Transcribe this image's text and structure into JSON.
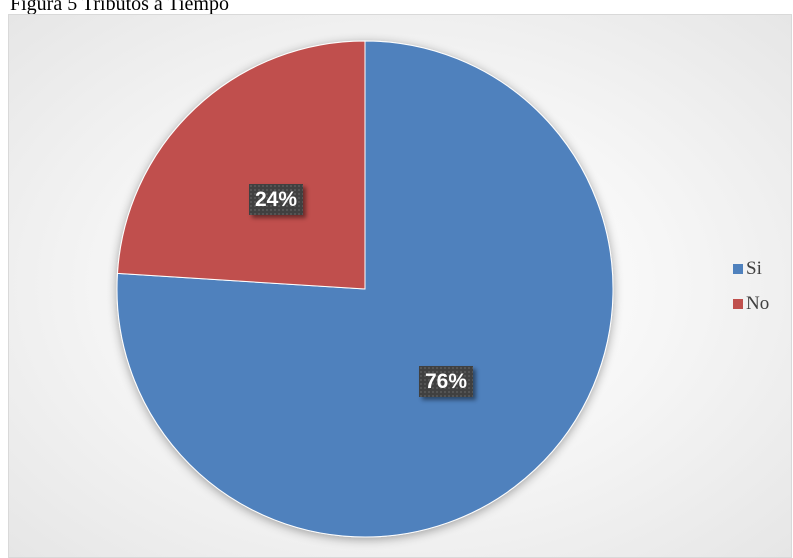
{
  "caption": "Figura 5 Tributos a Tiempo",
  "chart_data": {
    "type": "pie",
    "title": "",
    "categories": [
      "Si",
      "No"
    ],
    "values": [
      76,
      24
    ],
    "data_labels": [
      "76%",
      "24%"
    ],
    "colors": [
      "#4f81bd",
      "#c0504d"
    ],
    "start_angle_deg": 0,
    "direction": "clockwise",
    "legend_position": "right"
  }
}
